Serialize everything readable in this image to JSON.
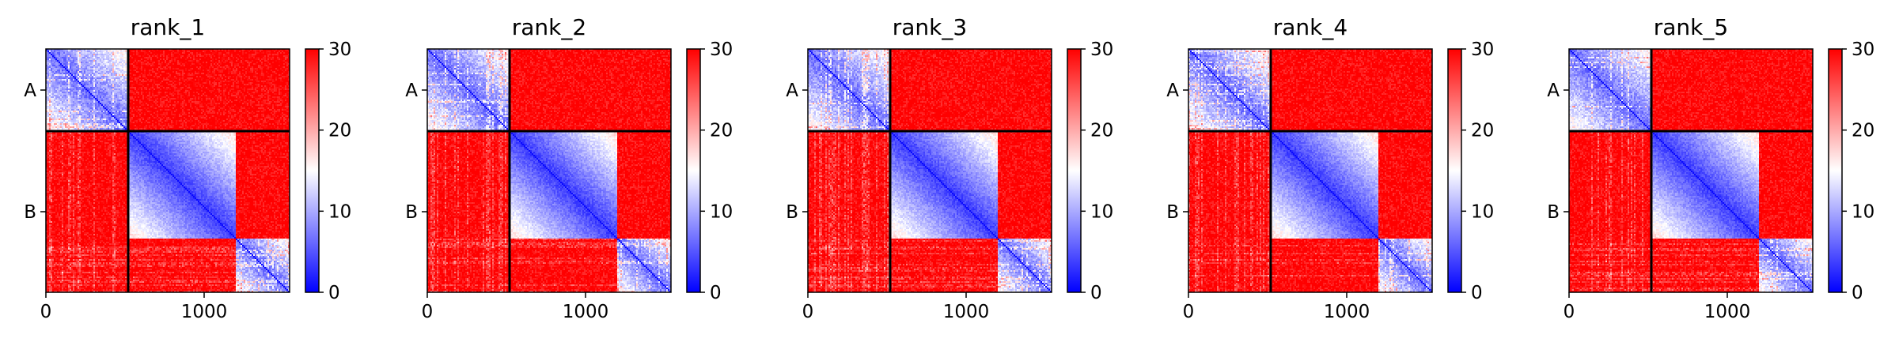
{
  "chart_data": [
    {
      "type": "heatmap",
      "title": "rank_1",
      "x_ticks": [
        "0",
        "1000"
      ],
      "y_ticks": [
        "A",
        "B"
      ],
      "xlim": [
        0,
        1540
      ],
      "chains": [
        {
          "name": "A",
          "start": 0,
          "end": 520
        },
        {
          "name": "B",
          "start": 520,
          "end": 1540
        }
      ],
      "domains": [
        [
          0,
          520
        ],
        [
          520,
          1200
        ],
        [
          1200,
          1540
        ]
      ],
      "colorbar": {
        "min": 0,
        "max": 30,
        "ticks": [
          "0",
          "10",
          "20",
          "30"
        ]
      },
      "seed": 11
    },
    {
      "type": "heatmap",
      "title": "rank_2",
      "x_ticks": [
        "0",
        "1000"
      ],
      "y_ticks": [
        "A",
        "B"
      ],
      "xlim": [
        0,
        1540
      ],
      "chains": [
        {
          "name": "A",
          "start": 0,
          "end": 520
        },
        {
          "name": "B",
          "start": 520,
          "end": 1540
        }
      ],
      "domains": [
        [
          0,
          520
        ],
        [
          520,
          1200
        ],
        [
          1200,
          1540
        ]
      ],
      "colorbar": {
        "min": 0,
        "max": 30,
        "ticks": [
          "0",
          "10",
          "20",
          "30"
        ]
      },
      "seed": 23
    },
    {
      "type": "heatmap",
      "title": "rank_3",
      "x_ticks": [
        "0",
        "1000"
      ],
      "y_ticks": [
        "A",
        "B"
      ],
      "xlim": [
        0,
        1540
      ],
      "chains": [
        {
          "name": "A",
          "start": 0,
          "end": 520
        },
        {
          "name": "B",
          "start": 520,
          "end": 1540
        }
      ],
      "domains": [
        [
          0,
          520
        ],
        [
          520,
          1200
        ],
        [
          1200,
          1540
        ]
      ],
      "colorbar": {
        "min": 0,
        "max": 30,
        "ticks": [
          "0",
          "10",
          "20",
          "30"
        ]
      },
      "seed": 37
    },
    {
      "type": "heatmap",
      "title": "rank_4",
      "x_ticks": [
        "0",
        "1000"
      ],
      "y_ticks": [
        "A",
        "B"
      ],
      "xlim": [
        0,
        1540
      ],
      "chains": [
        {
          "name": "A",
          "start": 0,
          "end": 520
        },
        {
          "name": "B",
          "start": 520,
          "end": 1540
        }
      ],
      "domains": [
        [
          0,
          520
        ],
        [
          520,
          1200
        ],
        [
          1200,
          1540
        ]
      ],
      "colorbar": {
        "min": 0,
        "max": 30,
        "ticks": [
          "0",
          "10",
          "20",
          "30"
        ]
      },
      "seed": 41
    },
    {
      "type": "heatmap",
      "title": "rank_5",
      "x_ticks": [
        "0",
        "1000"
      ],
      "y_ticks": [
        "A",
        "B"
      ],
      "xlim": [
        0,
        1540
      ],
      "chains": [
        {
          "name": "A",
          "start": 0,
          "end": 520
        },
        {
          "name": "B",
          "start": 520,
          "end": 1540
        }
      ],
      "domains": [
        [
          0,
          520
        ],
        [
          520,
          1200
        ],
        [
          1200,
          1540
        ]
      ],
      "colorbar": {
        "min": 0,
        "max": 30,
        "ticks": [
          "0",
          "10",
          "20",
          "30"
        ]
      },
      "seed": 53
    }
  ],
  "colors": {
    "low": "#0000ff",
    "mid": "#ffffff",
    "high": "#ff0000",
    "chain_lines": "#000000"
  }
}
